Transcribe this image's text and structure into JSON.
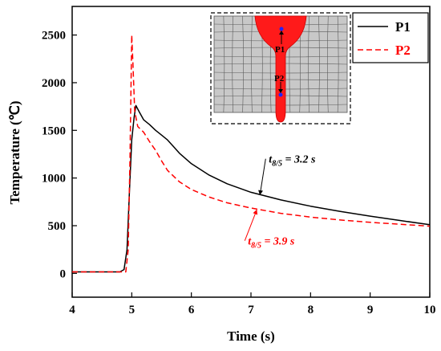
{
  "chart_data": {
    "type": "line",
    "xlabel": "Time (s)",
    "ylabel": "Temperature (℃)",
    "xlim": [
      4,
      10
    ],
    "ylim": [
      -250,
      2800
    ],
    "xticks": [
      4,
      5,
      6,
      7,
      8,
      9,
      10
    ],
    "yticks": [
      0,
      500,
      1000,
      1500,
      2000,
      2500
    ],
    "legend_position": "top-right",
    "series": [
      {
        "name": "P1",
        "color": "#000000",
        "style": "solid",
        "x": [
          4.0,
          4.8,
          4.87,
          4.92,
          4.96,
          5.0,
          5.04,
          5.07,
          5.12,
          5.2,
          5.3,
          5.4,
          5.5,
          5.6,
          5.7,
          5.8,
          6.0,
          6.3,
          6.6,
          7.0,
          7.5,
          8.0,
          8.5,
          9.0,
          9.5,
          10.0
        ],
        "y": [
          15,
          15,
          40,
          250,
          850,
          1400,
          1640,
          1760,
          1700,
          1610,
          1560,
          1500,
          1450,
          1400,
          1330,
          1260,
          1150,
          1030,
          940,
          850,
          770,
          705,
          650,
          600,
          555,
          510
        ]
      },
      {
        "name": "P2",
        "color": "#ff0000",
        "style": "dashed",
        "x": [
          4.0,
          4.9,
          4.94,
          4.97,
          5.0,
          5.02,
          5.05,
          5.1,
          5.2,
          5.3,
          5.4,
          5.5,
          5.6,
          5.8,
          6.0,
          6.3,
          6.6,
          7.0,
          7.5,
          8.0,
          8.5,
          9.0,
          9.5,
          10.0
        ],
        "y": [
          15,
          15,
          250,
          1200,
          2500,
          2200,
          1700,
          1540,
          1480,
          1380,
          1290,
          1180,
          1080,
          960,
          880,
          800,
          740,
          685,
          630,
          590,
          560,
          535,
          515,
          495
        ]
      }
    ],
    "annotations": [
      {
        "label_main": "t",
        "label_sub": "8/5",
        "label_value": " = 3.2 s",
        "color": "#000000",
        "x": 7.3,
        "y": 1160,
        "arrow_to_x": 7.15,
        "arrow_to_y": 820
      },
      {
        "label_main": "t",
        "label_sub": "8/5",
        "label_value": " = 3.9 s",
        "color": "#ff0000",
        "x": 6.95,
        "y": 300,
        "arrow_to_x": 7.1,
        "arrow_to_y": 670
      }
    ],
    "inset": {
      "labels": [
        "P1",
        "P2"
      ]
    }
  }
}
